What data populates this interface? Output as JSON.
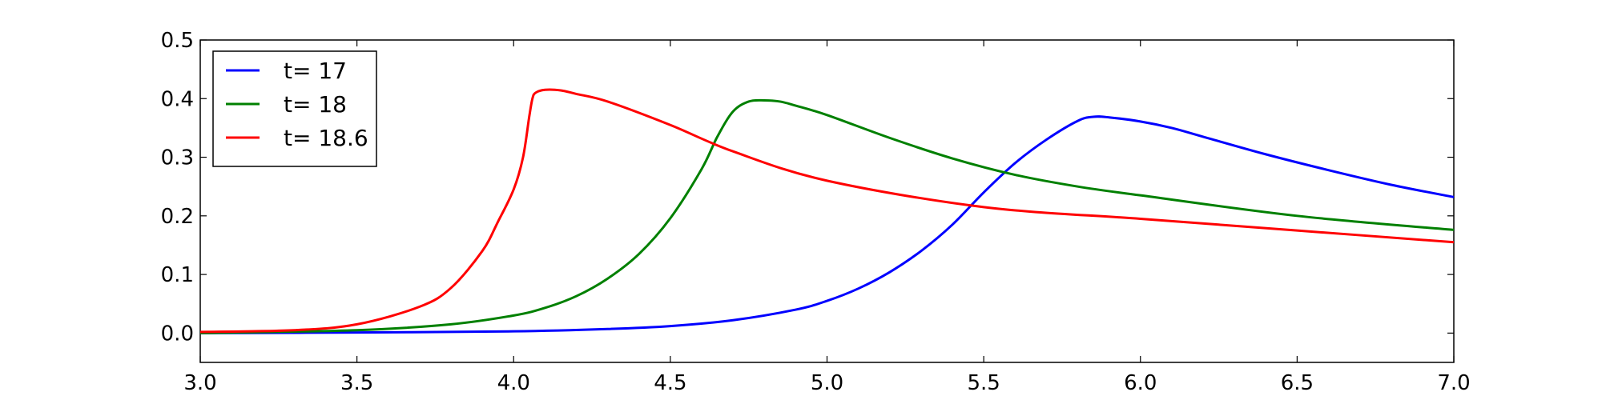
{
  "chart_data": {
    "type": "line",
    "title": "",
    "xlabel": "",
    "ylabel": "",
    "xlim": [
      3.0,
      7.0
    ],
    "ylim": [
      -0.05,
      0.5
    ],
    "xticks": [
      3.0,
      3.5,
      4.0,
      4.5,
      5.0,
      5.5,
      6.0,
      6.5,
      7.0
    ],
    "xtick_labels": [
      "3.0",
      "3.5",
      "4.0",
      "4.5",
      "5.0",
      "5.5",
      "6.0",
      "6.5",
      "7.0"
    ],
    "yticks": [
      0.0,
      0.1,
      0.2,
      0.3,
      0.4,
      0.5
    ],
    "ytick_labels": [
      "0.0",
      "0.1",
      "0.2",
      "0.3",
      "0.4",
      "0.5"
    ],
    "grid": false,
    "legend_position": "top-left",
    "series": [
      {
        "name": "t= 17",
        "color": "#0000ff",
        "x": [
          3.0,
          3.5,
          4.0,
          4.3,
          4.5,
          4.7,
          4.9,
          5.0,
          5.1,
          5.2,
          5.3,
          5.4,
          5.5,
          5.6,
          5.7,
          5.8,
          5.85,
          5.9,
          6.0,
          6.1,
          6.2,
          6.4,
          6.6,
          6.8,
          7.0
        ],
        "y": [
          0.0,
          0.001,
          0.003,
          0.007,
          0.012,
          0.022,
          0.04,
          0.055,
          0.076,
          0.104,
          0.14,
          0.185,
          0.24,
          0.29,
          0.33,
          0.362,
          0.369,
          0.368,
          0.361,
          0.35,
          0.335,
          0.305,
          0.278,
          0.253,
          0.232
        ]
      },
      {
        "name": "t= 18",
        "color": "#008000",
        "x": [
          3.0,
          3.5,
          3.8,
          4.0,
          4.1,
          4.2,
          4.3,
          4.4,
          4.5,
          4.6,
          4.65,
          4.7,
          4.75,
          4.8,
          4.85,
          4.9,
          5.0,
          5.2,
          5.4,
          5.6,
          5.8,
          6.0,
          6.5,
          7.0
        ],
        "y": [
          0.0,
          0.005,
          0.015,
          0.03,
          0.043,
          0.063,
          0.093,
          0.135,
          0.196,
          0.28,
          0.335,
          0.378,
          0.395,
          0.397,
          0.395,
          0.388,
          0.372,
          0.333,
          0.298,
          0.27,
          0.25,
          0.235,
          0.2,
          0.176
        ]
      },
      {
        "name": "t= 18.6",
        "color": "#ff0000",
        "x": [
          3.0,
          3.3,
          3.5,
          3.7,
          3.8,
          3.9,
          3.95,
          4.0,
          4.03,
          4.05,
          4.06,
          4.07,
          4.1,
          4.15,
          4.2,
          4.3,
          4.5,
          4.7,
          5.0,
          5.5,
          6.0,
          6.5,
          7.0
        ],
        "y": [
          0.002,
          0.005,
          0.015,
          0.045,
          0.077,
          0.14,
          0.19,
          0.245,
          0.3,
          0.37,
          0.4,
          0.41,
          0.415,
          0.414,
          0.408,
          0.395,
          0.355,
          0.31,
          0.26,
          0.215,
          0.195,
          0.175,
          0.155
        ]
      }
    ]
  }
}
